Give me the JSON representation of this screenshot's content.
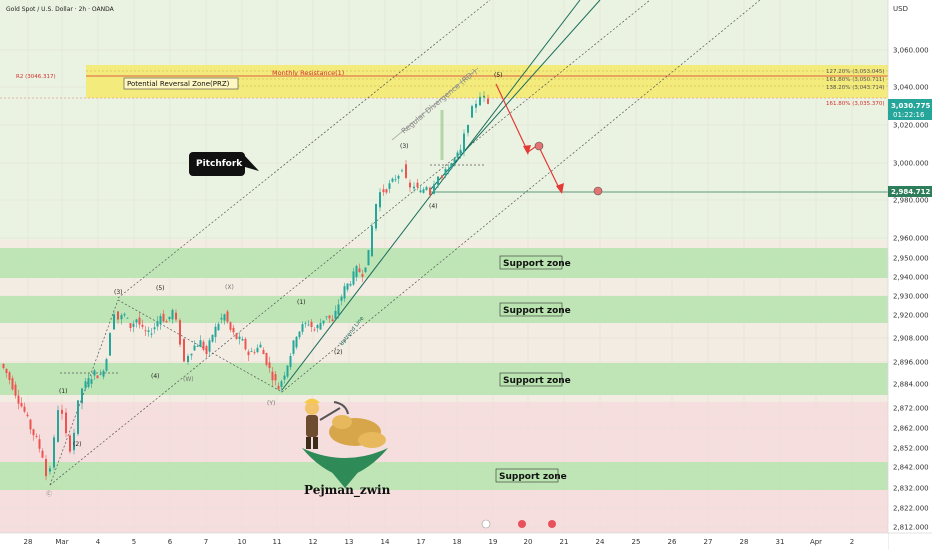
{
  "header": {
    "symbol": "Gold Spot / U.S. Dollar · 2h · OANDA",
    "currency": "USD"
  },
  "price_axis": {
    "ticks": [
      "3,060.000",
      "3,040.000",
      "3,020.000",
      "3,000.000",
      "2,980.000",
      "2,960.000",
      "2,950.000",
      "2,940.000",
      "2,930.000",
      "2,920.000",
      "2,908.000",
      "2,896.000",
      "2,884.000",
      "2,872.000",
      "2,862.000",
      "2,852.000",
      "2,842.000",
      "2,832.000",
      "2,822.000",
      "2,812.000"
    ]
  },
  "time_axis": {
    "labels": [
      "28",
      "Mar",
      "4",
      "5",
      "6",
      "7",
      "10",
      "11",
      "12",
      "13",
      "14",
      "17",
      "18",
      "19",
      "20",
      "21",
      "24",
      "25",
      "26",
      "27",
      "28",
      "31",
      "Apr",
      "2"
    ]
  },
  "badges": {
    "current_price": "3,030.775",
    "countdown": "01:22:16",
    "target_price": "2,984.712"
  },
  "annotations": {
    "r2": "R2 (3046.317)",
    "prz": "Potential Reversal Zone(PRZ)",
    "monthly_resistance": "Monthly Resistance(1)",
    "regular_divergence": "Regular Divergence (RD-)",
    "pitchfork": "Pitchfork",
    "uptrend_line": "Uptrend Line",
    "fib_127": "127.20% (3,053.045)",
    "fib_mid": "161.80% (3,050.711)",
    "fib_138": "138.20% (3,043.714)",
    "fib_161": "161.80% (3,035.370)",
    "support_zone": "Support zone",
    "brand": "Pejman_zwin"
  },
  "waves": {
    "w1a": "(1)",
    "w2a": "(2)",
    "w3a": "(3)",
    "w4a": "(4)",
    "w5a": "(5)",
    "wW": "(W)",
    "wX": "(X)",
    "wY": "(Y)",
    "w1b": "(1)",
    "w2b": "(2)",
    "w3b": "(3)",
    "w4b": "(4)",
    "w5b": "(5)",
    "c": "Ⓒ"
  },
  "colors": {
    "bull": "#26a69a",
    "bear": "#ef5350",
    "prz": "#f5ea6a",
    "support": "#b9e4b0",
    "target": "#2e7d5b",
    "price_badge": "#26a69a"
  },
  "chart_data": {
    "type": "candlestick",
    "title": "Gold Spot / U.S. Dollar · 2h · OANDA",
    "y_axis": {
      "unit": "USD",
      "min": 2808,
      "max": 3072
    },
    "current_price": 3030.775,
    "target_price": 2984.712,
    "r2": 3046.317,
    "support_zones": [
      [
        2943,
        2956
      ],
      [
        2918,
        2928
      ],
      [
        2880,
        2892
      ],
      [
        2830,
        2842
      ]
    ],
    "prz": [
      3034,
      3052
    ],
    "path": [
      [
        2,
        2895
      ],
      [
        8,
        2890
      ],
      [
        14,
        2883
      ],
      [
        20,
        2876
      ],
      [
        26,
        2870
      ],
      [
        32,
        2862
      ],
      [
        38,
        2856
      ],
      [
        44,
        2848
      ],
      [
        48,
        2838
      ],
      [
        52,
        2842
      ],
      [
        56,
        2856
      ],
      [
        60,
        2872
      ],
      [
        64,
        2868
      ],
      [
        68,
        2858
      ],
      [
        72,
        2852
      ],
      [
        76,
        2860
      ],
      [
        80,
        2874
      ],
      [
        84,
        2882
      ],
      [
        90,
        2886
      ],
      [
        96,
        2890
      ],
      [
        102,
        2888
      ],
      [
        108,
        2898
      ],
      [
        112,
        2912
      ],
      [
        116,
        2922
      ],
      [
        120,
        2918
      ],
      [
        126,
        2920
      ],
      [
        132,
        2914
      ],
      [
        138,
        2918
      ],
      [
        144,
        2912
      ],
      [
        150,
        2910
      ],
      [
        156,
        2914
      ],
      [
        162,
        2920
      ],
      [
        168,
        2916
      ],
      [
        174,
        2922
      ],
      [
        178,
        2916
      ],
      [
        182,
        2906
      ],
      [
        186,
        2896
      ],
      [
        190,
        2900
      ],
      [
        196,
        2904
      ],
      [
        202,
        2906
      ],
      [
        208,
        2900
      ],
      [
        214,
        2910
      ],
      [
        220,
        2916
      ],
      [
        226,
        2920
      ],
      [
        232,
        2912
      ],
      [
        238,
        2908
      ],
      [
        244,
        2906
      ],
      [
        250,
        2900
      ],
      [
        256,
        2902
      ],
      [
        262,
        2904
      ],
      [
        268,
        2896
      ],
      [
        274,
        2888
      ],
      [
        280,
        2882
      ],
      [
        286,
        2890
      ],
      [
        292,
        2900
      ],
      [
        298,
        2910
      ],
      [
        304,
        2914
      ],
      [
        310,
        2916
      ],
      [
        316,
        2912
      ],
      [
        322,
        2916
      ],
      [
        328,
        2920
      ],
      [
        334,
        2916
      ],
      [
        340,
        2926
      ],
      [
        346,
        2934
      ],
      [
        352,
        2938
      ],
      [
        358,
        2944
      ],
      [
        364,
        2942
      ],
      [
        370,
        2952
      ],
      [
        374,
        2966
      ],
      [
        378,
        2978
      ],
      [
        382,
        2984
      ],
      [
        388,
        2986
      ],
      [
        394,
        2990
      ],
      [
        400,
        2994
      ],
      [
        404,
        2998
      ],
      [
        408,
        2990
      ],
      [
        412,
        2986
      ],
      [
        416,
        2988
      ],
      [
        422,
        2984
      ],
      [
        428,
        2988
      ],
      [
        432,
        2984
      ],
      [
        436,
        2990
      ],
      [
        440,
        2994
      ],
      [
        444,
        2992
      ],
      [
        450,
        2998
      ],
      [
        456,
        3002
      ],
      [
        462,
        3006
      ],
      [
        466,
        3014
      ],
      [
        470,
        3022
      ],
      [
        474,
        3028
      ],
      [
        478,
        3032
      ],
      [
        482,
        3036
      ],
      [
        486,
        3034
      ],
      [
        490,
        3031
      ]
    ]
  }
}
